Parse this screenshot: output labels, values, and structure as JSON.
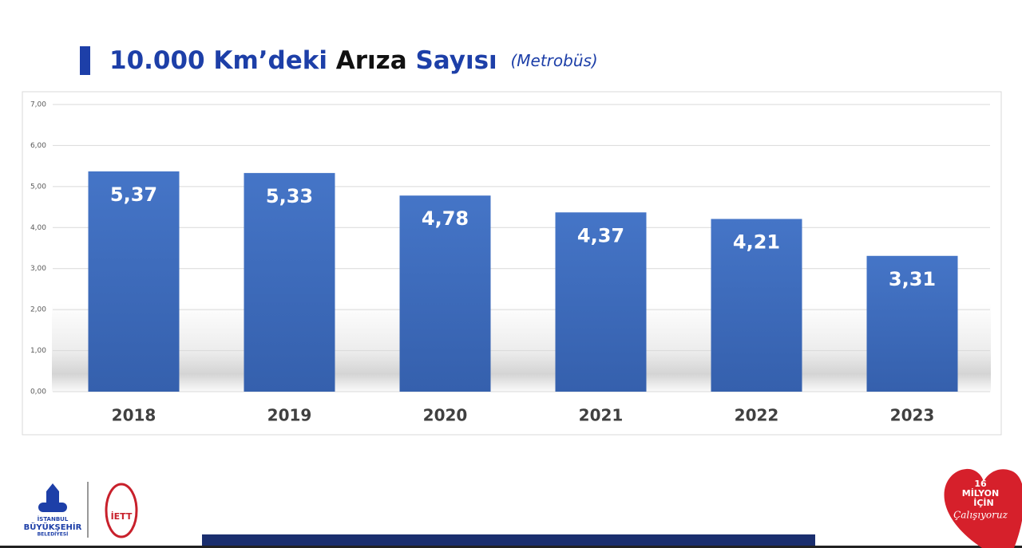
{
  "chart_data": {
    "type": "bar",
    "title": [
      "10.000 Km’deki",
      "Arıza",
      "Sayısı"
    ],
    "subtitle": "(Metrobüs)",
    "categories": [
      "2018",
      "2019",
      "2020",
      "2021",
      "2022",
      "2023"
    ],
    "values": [
      5.37,
      5.33,
      4.78,
      4.37,
      4.21,
      3.31
    ],
    "value_labels": [
      "5,37",
      "5,33",
      "4,78",
      "4,37",
      "4,21",
      "3,31"
    ],
    "color": "#4472c4",
    "ylim": [
      0,
      7
    ],
    "yticks": [
      {
        "value": 0,
        "label": "0,00"
      },
      {
        "value": 1,
        "label": "1,00"
      },
      {
        "value": 2,
        "label": "2,00"
      },
      {
        "value": 3,
        "label": "3,00"
      },
      {
        "value": 4,
        "label": "4,00"
      },
      {
        "value": 5,
        "label": "5,00"
      },
      {
        "value": 6,
        "label": "6,00"
      },
      {
        "value": 7,
        "label": "7,00"
      }
    ],
    "grid": true
  },
  "footer": {
    "ibb": [
      "İSTANBUL",
      "BÜYÜKŞEHİR",
      "BELEDİYESİ"
    ],
    "iett": "İETT",
    "badge": [
      "16",
      "MİLYON",
      "İÇİN",
      "Çalışıyoruz"
    ]
  }
}
